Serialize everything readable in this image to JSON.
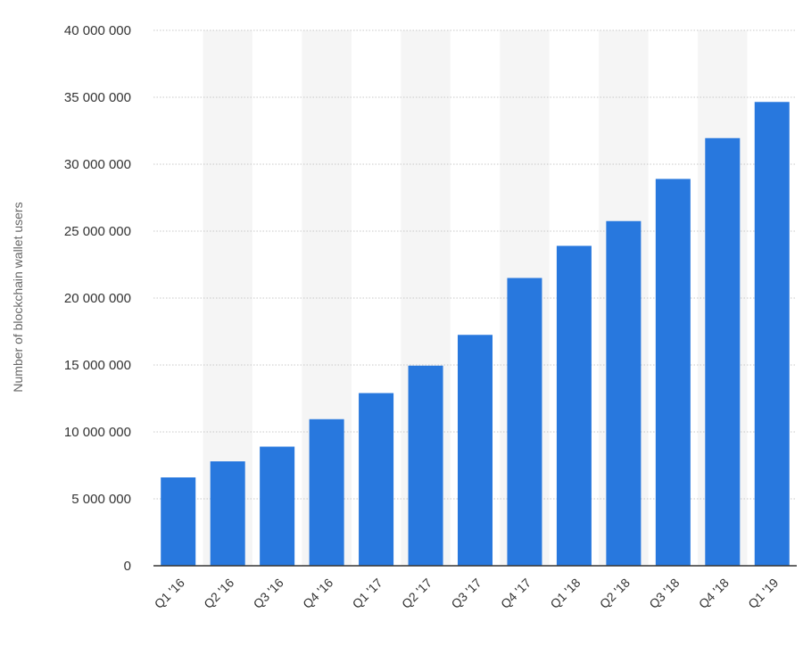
{
  "chart_data": {
    "type": "bar",
    "categories": [
      "Q1 '16",
      "Q2 '16",
      "Q3 '16",
      "Q4 '16",
      "Q1 '17",
      "Q2 '17",
      "Q3 '17",
      "Q4 '17",
      "Q1 '18",
      "Q2 '18",
      "Q3 '18",
      "Q4 '18",
      "Q1 '19"
    ],
    "values": [
      6600000,
      7800000,
      8900000,
      10950000,
      12900000,
      14950000,
      17250000,
      21500000,
      23900000,
      25750000,
      28900000,
      31950000,
      34650000
    ],
    "ylabel": "Number of blockchain wallet users",
    "ylim": [
      0,
      40000000
    ],
    "yticks": [
      0,
      5000000,
      10000000,
      15000000,
      20000000,
      25000000,
      30000000,
      35000000,
      40000000
    ],
    "ytick_labels": [
      "0",
      "5 000 000",
      "10 000 000",
      "15 000 000",
      "20 000 000",
      "25 000 000",
      "30 000 000",
      "35 000 000",
      "40 000 000"
    ],
    "grid": true,
    "alternating_column_shading": true,
    "colors": {
      "bar": "#2878de",
      "band": "#f5f5f5",
      "grid": "#c8c8c8",
      "axis": "#333333"
    }
  }
}
